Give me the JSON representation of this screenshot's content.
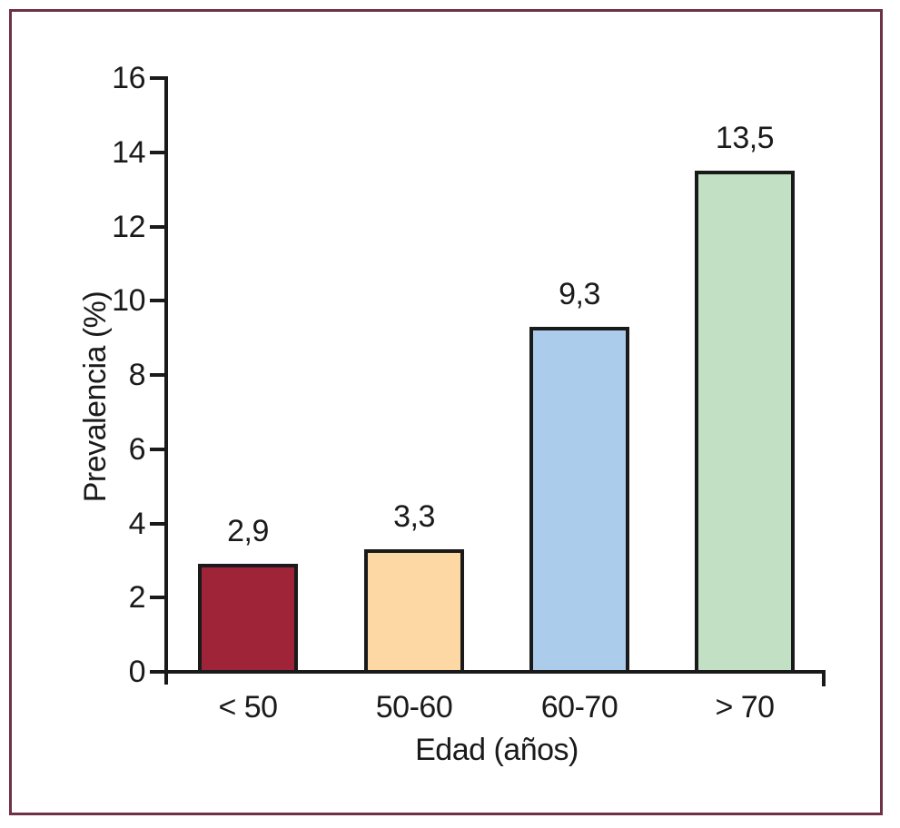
{
  "chart_data": {
    "type": "bar",
    "title": "",
    "xlabel": "Edad (años)",
    "ylabel": "Prevalencia (%)",
    "categories": [
      "< 50",
      "50-60",
      "60-70",
      "> 70"
    ],
    "values": [
      2.9,
      3.3,
      9.3,
      13.5
    ],
    "value_labels": [
      "2,9",
      "3,3",
      "9,3",
      "13,5"
    ],
    "bar_colors": [
      "#A02438",
      "#FDD8A5",
      "#ABCDEB",
      "#C2E0C4"
    ],
    "ylim": [
      0,
      16
    ],
    "yticks": [
      0,
      2,
      4,
      6,
      8,
      10,
      12,
      14,
      16
    ],
    "ytick_labels": [
      "0",
      "2",
      "4",
      "6",
      "8",
      "10",
      "12",
      "14",
      "16"
    ],
    "grid": false,
    "legend": false,
    "axis_color": "#1A1A1A",
    "frame_color": "#6E3146",
    "background_color": "#FFFFFF"
  }
}
